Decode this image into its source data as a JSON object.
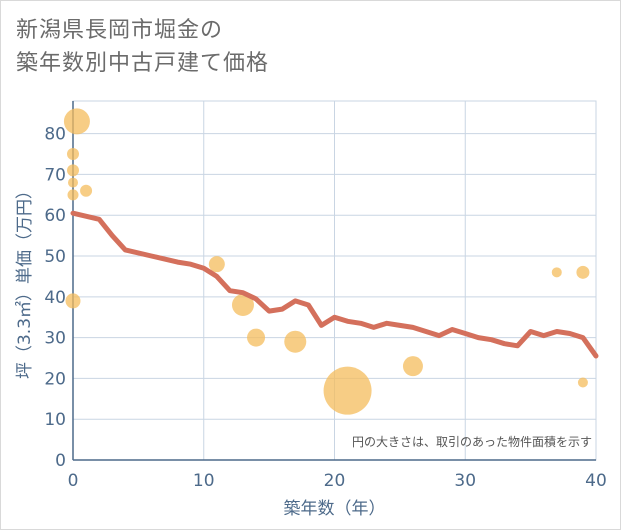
{
  "title_lines": [
    "新潟県長岡市堀金の",
    "築年数別中古戸建て価格"
  ],
  "chart_data": {
    "type": "scatter",
    "title": "新潟県長岡市堀金の築年数別中古戸建て価格",
    "xlabel": "築年数（年）",
    "ylabel": "坪（3.3㎡）単価（万円）",
    "xlim": [
      0,
      40
    ],
    "ylim": [
      0,
      88
    ],
    "xticks": [
      0,
      10,
      20,
      30,
      40
    ],
    "yticks": [
      0,
      10,
      20,
      30,
      40,
      50,
      60,
      70,
      80
    ],
    "grid": true,
    "note": "円の大きさは、取引のあった物件面積を示す",
    "colors": {
      "bubble": "#f4bc5c",
      "line": "#d4705c",
      "grid": "#c9d5e3",
      "axis": "#4d6a8a"
    },
    "bubbles": [
      {
        "x": 0.3,
        "y": 83,
        "size": 26
      },
      {
        "x": 0,
        "y": 75,
        "size": 12
      },
      {
        "x": 0,
        "y": 71,
        "size": 12
      },
      {
        "x": 0,
        "y": 68,
        "size": 10
      },
      {
        "x": 1,
        "y": 66,
        "size": 12
      },
      {
        "x": 0,
        "y": 65,
        "size": 11
      },
      {
        "x": 0,
        "y": 39,
        "size": 15
      },
      {
        "x": 11,
        "y": 48,
        "size": 16
      },
      {
        "x": 13,
        "y": 38,
        "size": 22
      },
      {
        "x": 14,
        "y": 30,
        "size": 18
      },
      {
        "x": 17,
        "y": 29,
        "size": 22
      },
      {
        "x": 21,
        "y": 17,
        "size": 48
      },
      {
        "x": 26,
        "y": 23,
        "size": 20
      },
      {
        "x": 37,
        "y": 46,
        "size": 10
      },
      {
        "x": 39,
        "y": 46,
        "size": 13
      },
      {
        "x": 39,
        "y": 19,
        "size": 10
      }
    ],
    "trend": {
      "x": [
        0,
        2,
        3,
        4,
        6,
        8,
        9,
        10,
        11,
        12,
        13,
        14,
        15,
        16,
        17,
        18,
        19,
        20,
        21,
        22,
        23,
        24,
        25,
        26,
        27,
        28,
        29,
        30,
        31,
        32,
        33,
        34,
        35,
        36,
        37,
        38,
        39,
        40
      ],
      "y": [
        60.5,
        59,
        55,
        51.5,
        50,
        48.5,
        48,
        47,
        45,
        41.5,
        41,
        39.5,
        36.5,
        37,
        39,
        38,
        33,
        35,
        34,
        33.5,
        32.5,
        33.5,
        33,
        32.5,
        31.5,
        30.5,
        32,
        31,
        30,
        29.5,
        28.5,
        28,
        31.5,
        30.5,
        31.5,
        31,
        30,
        25.5
      ]
    }
  }
}
